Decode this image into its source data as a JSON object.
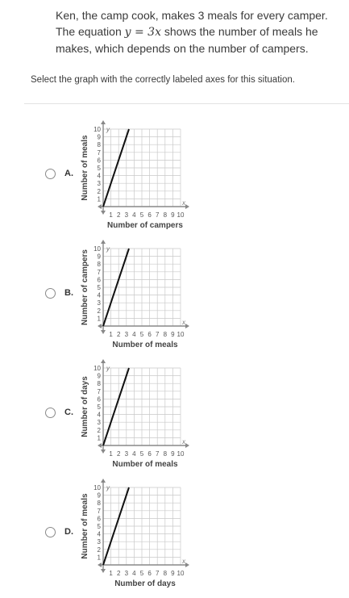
{
  "question": {
    "part1": "Ken, the camp cook, makes 3 meals for every camper. The equation ",
    "math_y": "y",
    "math_eq": " = 3",
    "math_x": "x",
    "part2": " shows the number of meals he makes, which depends on the number of campers."
  },
  "instruction": "Select the graph with the correctly labeled axes for this situation.",
  "options": [
    {
      "letter": "A.",
      "ylabel": "Number of meals",
      "xlabel": "Number of campers"
    },
    {
      "letter": "B.",
      "ylabel": "Number of campers",
      "xlabel": "Number of meals"
    },
    {
      "letter": "C.",
      "ylabel": "Number of days",
      "xlabel": "Number of meals"
    },
    {
      "letter": "D.",
      "ylabel": "Number of meals",
      "xlabel": "Number of days"
    }
  ],
  "chart_data": [
    {
      "type": "line",
      "xlabel": "Number of campers",
      "ylabel": "Number of meals",
      "xlim": [
        0,
        10
      ],
      "ylim": [
        0,
        10
      ],
      "x_ticks": [
        1,
        2,
        3,
        4,
        5,
        6,
        7,
        8,
        9,
        10
      ],
      "y_ticks": [
        1,
        2,
        3,
        4,
        5,
        6,
        7,
        8,
        9,
        10
      ],
      "x_axis_name": "x",
      "y_axis_name": "y",
      "series": [
        {
          "x": [
            0,
            3.33
          ],
          "y": [
            0,
            10
          ]
        }
      ],
      "grid": true
    },
    {
      "type": "line",
      "xlabel": "Number of meals",
      "ylabel": "Number of campers",
      "xlim": [
        0,
        10
      ],
      "ylim": [
        0,
        10
      ],
      "x_ticks": [
        1,
        2,
        3,
        4,
        5,
        6,
        7,
        8,
        9,
        10
      ],
      "y_ticks": [
        1,
        2,
        3,
        4,
        5,
        6,
        7,
        8,
        9,
        10
      ],
      "x_axis_name": "x",
      "y_axis_name": "y",
      "series": [
        {
          "x": [
            0,
            3.33
          ],
          "y": [
            0,
            10
          ]
        }
      ],
      "grid": true
    },
    {
      "type": "line",
      "xlabel": "Number of meals",
      "ylabel": "Number of days",
      "xlim": [
        0,
        10
      ],
      "ylim": [
        0,
        10
      ],
      "x_ticks": [
        1,
        2,
        3,
        4,
        5,
        6,
        7,
        8,
        9,
        10
      ],
      "y_ticks": [
        1,
        2,
        3,
        4,
        5,
        6,
        7,
        8,
        9,
        10
      ],
      "x_axis_name": "x",
      "y_axis_name": "y",
      "series": [
        {
          "x": [
            0,
            3.33
          ],
          "y": [
            0,
            10
          ]
        }
      ],
      "grid": true
    },
    {
      "type": "line",
      "xlabel": "Number of days",
      "ylabel": "Number of meals",
      "xlim": [
        0,
        10
      ],
      "ylim": [
        0,
        10
      ],
      "x_ticks": [
        1,
        2,
        3,
        4,
        5,
        6,
        7,
        8,
        9,
        10
      ],
      "y_ticks": [
        1,
        2,
        3,
        4,
        5,
        6,
        7,
        8,
        9,
        10
      ],
      "x_axis_name": "x",
      "y_axis_name": "y",
      "series": [
        {
          "x": [
            0,
            3.33
          ],
          "y": [
            0,
            10
          ]
        }
      ],
      "grid": true
    }
  ]
}
